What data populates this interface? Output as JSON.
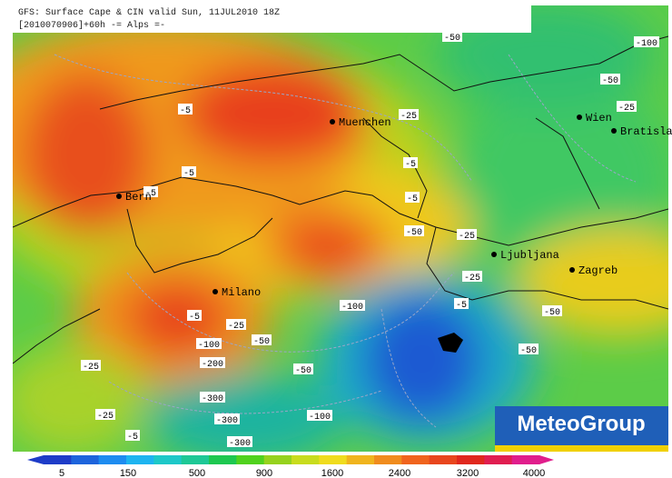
{
  "header": {
    "line1": "GFS: Surface Cape & CIN valid Sun, 11JUL2010 18Z",
    "line2": "[2010070906]+60h -= Alps =-"
  },
  "cities": [
    "Muenchen",
    "Wien",
    "Bratisla",
    "Bern",
    "Ljubljana",
    "Zagreb",
    "Milano"
  ],
  "contour_labels": [
    -50,
    -100,
    -50,
    -25,
    -5,
    -25,
    -5,
    -5,
    -5,
    -5,
    -50,
    -25,
    -25,
    -5,
    -100,
    -50,
    -5,
    -25,
    -50,
    -100,
    -50,
    -200,
    -25,
    -50,
    -300,
    -25,
    -100,
    -300,
    -5,
    -300
  ],
  "colorbar": {
    "ticks": [
      5,
      150,
      500,
      900,
      1600,
      2400,
      3200,
      4000
    ]
  },
  "logo": "MeteoGroup"
}
